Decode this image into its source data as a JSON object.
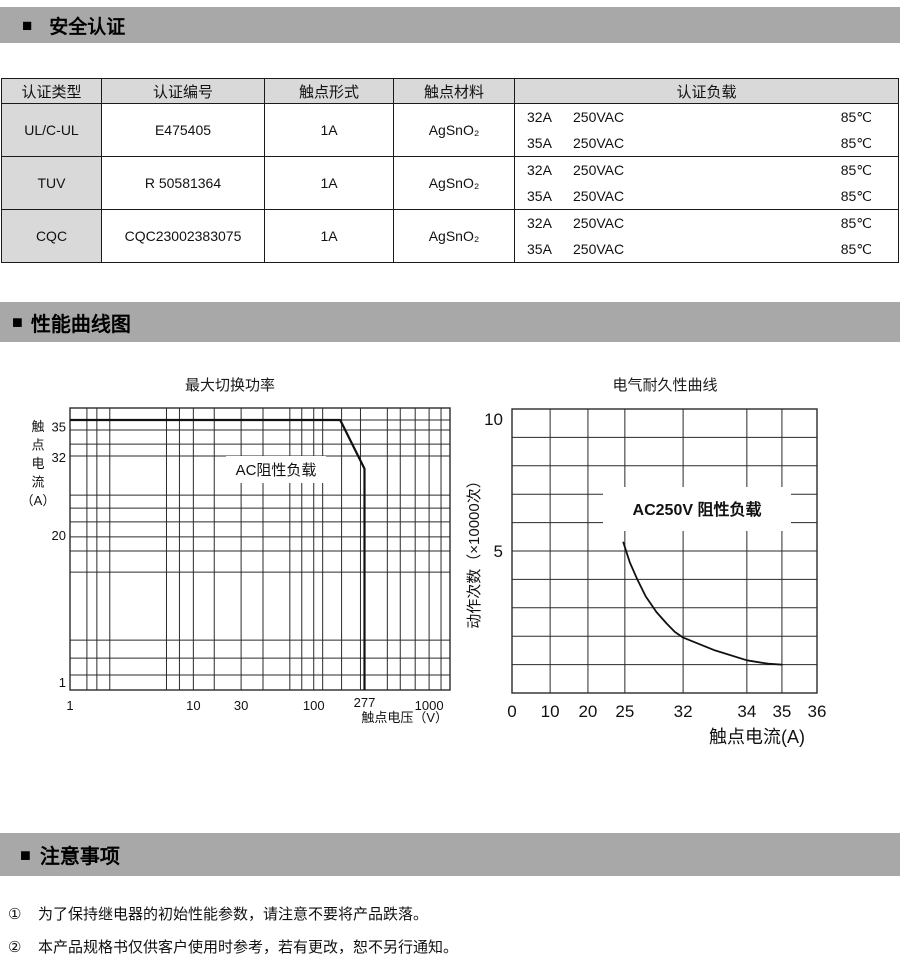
{
  "sections": [
    {
      "marker": "■",
      "title": "安全认证"
    },
    {
      "marker": "■",
      "title": "性能曲线图"
    },
    {
      "marker": "■",
      "title": "注意事项"
    }
  ],
  "cert_table": {
    "headers": [
      "认证类型",
      "认证编号",
      "触点形式",
      "触点材料",
      "认证负载"
    ],
    "rows": [
      {
        "type": "UL/C-UL",
        "number": "E475405",
        "form": "1A",
        "material": "AgSnO₂",
        "loads": [
          {
            "current": "32A",
            "voltage": "250VAC",
            "temp": "85℃"
          },
          {
            "current": "35A",
            "voltage": "250VAC",
            "temp": "85℃"
          }
        ]
      },
      {
        "type": "TUV",
        "number": "R 50581364",
        "form": "1A",
        "material": "AgSnO₂",
        "loads": [
          {
            "current": "32A",
            "voltage": "250VAC",
            "temp": "85℃"
          },
          {
            "current": "35A",
            "voltage": "250VAC",
            "temp": "85℃"
          }
        ]
      },
      {
        "type": "CQC",
        "number": "CQC23002383075",
        "form": "1A",
        "material": "AgSnO₂",
        "loads": [
          {
            "current": "32A",
            "voltage": "250VAC",
            "temp": "85℃"
          },
          {
            "current": "35A",
            "voltage": "250VAC",
            "temp": "85℃"
          }
        ]
      }
    ]
  },
  "chart_data": [
    {
      "id": "max-switching-power",
      "type": "line",
      "title": "最大切换功率",
      "xlabel": "触点电压（V）",
      "ylabel": "触点电流（A）",
      "x_scale": "log",
      "y_scale": "log",
      "x_ticks": [
        1,
        10,
        30,
        100,
        277,
        1000
      ],
      "y_ticks": [
        35,
        32,
        20,
        1
      ],
      "xlim": [
        1,
        1400
      ],
      "ylim": [
        1,
        40
      ],
      "grid": true,
      "annotation": "AC阻性负载",
      "series": [
        {
          "name": "AC阻性负载",
          "points": [
            [
              1,
              35
            ],
            [
              170,
              35
            ],
            [
              277,
              30
            ],
            [
              277,
              1
            ]
          ]
        }
      ]
    },
    {
      "id": "electrical-endurance",
      "type": "line",
      "title": "电气耐久性曲线",
      "xlabel": "触点电流(A)",
      "ylabel": "动作次数（×10000次）",
      "x_ticks": [
        0,
        10,
        20,
        25,
        32,
        34,
        35,
        36
      ],
      "y_ticks": [
        10,
        5
      ],
      "ylim": [
        0,
        10
      ],
      "grid": true,
      "annotation": "AC250V 阻性负载",
      "series": [
        {
          "name": "AC250V 阻性负载",
          "points": [
            [
              24.8,
              5.3
            ],
            [
              25.6,
              4.6
            ],
            [
              26.5,
              4.0
            ],
            [
              27.5,
              3.4
            ],
            [
              28.8,
              2.85
            ],
            [
              30,
              2.45
            ],
            [
              31,
              2.15
            ],
            [
              32,
              1.95
            ],
            [
              33,
              1.5
            ],
            [
              34,
              1.15
            ],
            [
              34.6,
              1.03
            ],
            [
              35,
              1.0
            ]
          ]
        }
      ]
    }
  ],
  "notes": [
    {
      "num": "①",
      "text": "为了保持继电器的初始性能参数，请注意不要将产品跌落。"
    },
    {
      "num": "②",
      "text": "本产品规格书仅供客户使用时参考，若有更改，恕不另行通知。"
    }
  ],
  "colors": {
    "section_bar_bg": "#a8a8a8",
    "table_shade_bg": "#d9d9d9",
    "border": "#1a1a1a",
    "grid": "#2a2a2a",
    "curve": "#111111"
  }
}
